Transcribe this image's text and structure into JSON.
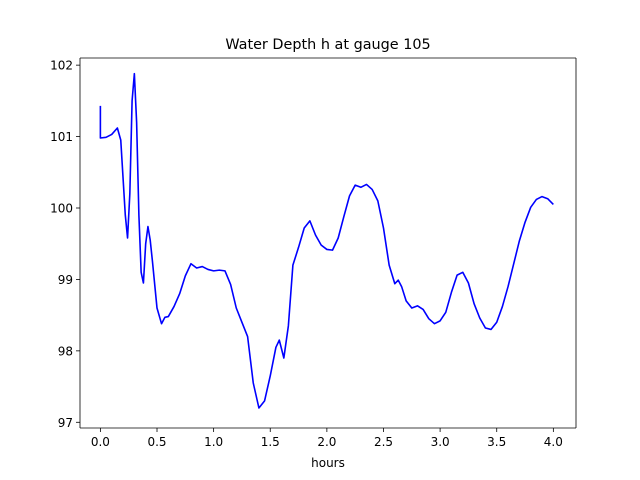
{
  "chart_data": {
    "type": "line",
    "title": "Water Depth h at gauge 105",
    "xlabel": "hours",
    "ylabel": "",
    "xlim": [
      -0.18,
      4.2
    ],
    "ylim": [
      96.92,
      102.1
    ],
    "grid": false,
    "x_ticks": [
      0.0,
      0.5,
      1.0,
      1.5,
      2.0,
      2.5,
      3.0,
      3.5,
      4.0
    ],
    "x_tick_labels": [
      "0.0",
      "0.5",
      "1.0",
      "1.5",
      "2.0",
      "2.5",
      "3.0",
      "3.5",
      "4.0"
    ],
    "y_ticks": [
      97,
      98,
      99,
      100,
      101,
      102
    ],
    "y_tick_labels": [
      "97",
      "98",
      "99",
      "100",
      "101",
      "102"
    ],
    "series": [
      {
        "color": "#0000ff",
        "x": [
          0.0,
          0.0,
          0.05,
          0.1,
          0.15,
          0.18,
          0.22,
          0.24,
          0.26,
          0.28,
          0.3,
          0.32,
          0.34,
          0.36,
          0.38,
          0.4,
          0.42,
          0.44,
          0.46,
          0.5,
          0.54,
          0.57,
          0.6,
          0.65,
          0.7,
          0.75,
          0.8,
          0.85,
          0.9,
          0.95,
          1.0,
          1.05,
          1.1,
          1.15,
          1.2,
          1.25,
          1.3,
          1.35,
          1.4,
          1.45,
          1.5,
          1.55,
          1.58,
          1.62,
          1.66,
          1.7,
          1.75,
          1.8,
          1.85,
          1.9,
          1.95,
          2.0,
          2.05,
          2.1,
          2.15,
          2.2,
          2.25,
          2.3,
          2.35,
          2.4,
          2.45,
          2.5,
          2.55,
          2.6,
          2.63,
          2.66,
          2.7,
          2.75,
          2.8,
          2.85,
          2.9,
          2.95,
          3.0,
          3.05,
          3.1,
          3.15,
          3.2,
          3.25,
          3.3,
          3.35,
          3.4,
          3.45,
          3.5,
          3.55,
          3.6,
          3.65,
          3.7,
          3.75,
          3.8,
          3.85,
          3.9,
          3.95,
          4.0
        ],
        "values": [
          101.43,
          100.98,
          100.99,
          101.03,
          101.12,
          100.95,
          99.9,
          99.58,
          100.2,
          101.5,
          101.88,
          101.2,
          99.9,
          99.1,
          98.95,
          99.5,
          99.74,
          99.55,
          99.25,
          98.6,
          98.38,
          98.47,
          98.48,
          98.62,
          98.8,
          99.05,
          99.22,
          99.16,
          99.18,
          99.14,
          99.12,
          99.13,
          99.12,
          98.93,
          98.6,
          98.4,
          98.2,
          97.55,
          97.2,
          97.3,
          97.65,
          98.05,
          98.15,
          97.9,
          98.35,
          99.2,
          99.45,
          99.72,
          99.82,
          99.62,
          99.48,
          99.42,
          99.41,
          99.58,
          99.88,
          100.17,
          100.32,
          100.29,
          100.33,
          100.26,
          100.1,
          99.72,
          99.2,
          98.94,
          98.99,
          98.9,
          98.7,
          98.6,
          98.63,
          98.58,
          98.45,
          98.38,
          98.42,
          98.54,
          98.82,
          99.06,
          99.1,
          98.95,
          98.66,
          98.46,
          98.32,
          98.3,
          98.4,
          98.62,
          98.9,
          99.22,
          99.54,
          99.8,
          100.01,
          100.12,
          100.16,
          100.13,
          100.05
        ]
      }
    ]
  }
}
